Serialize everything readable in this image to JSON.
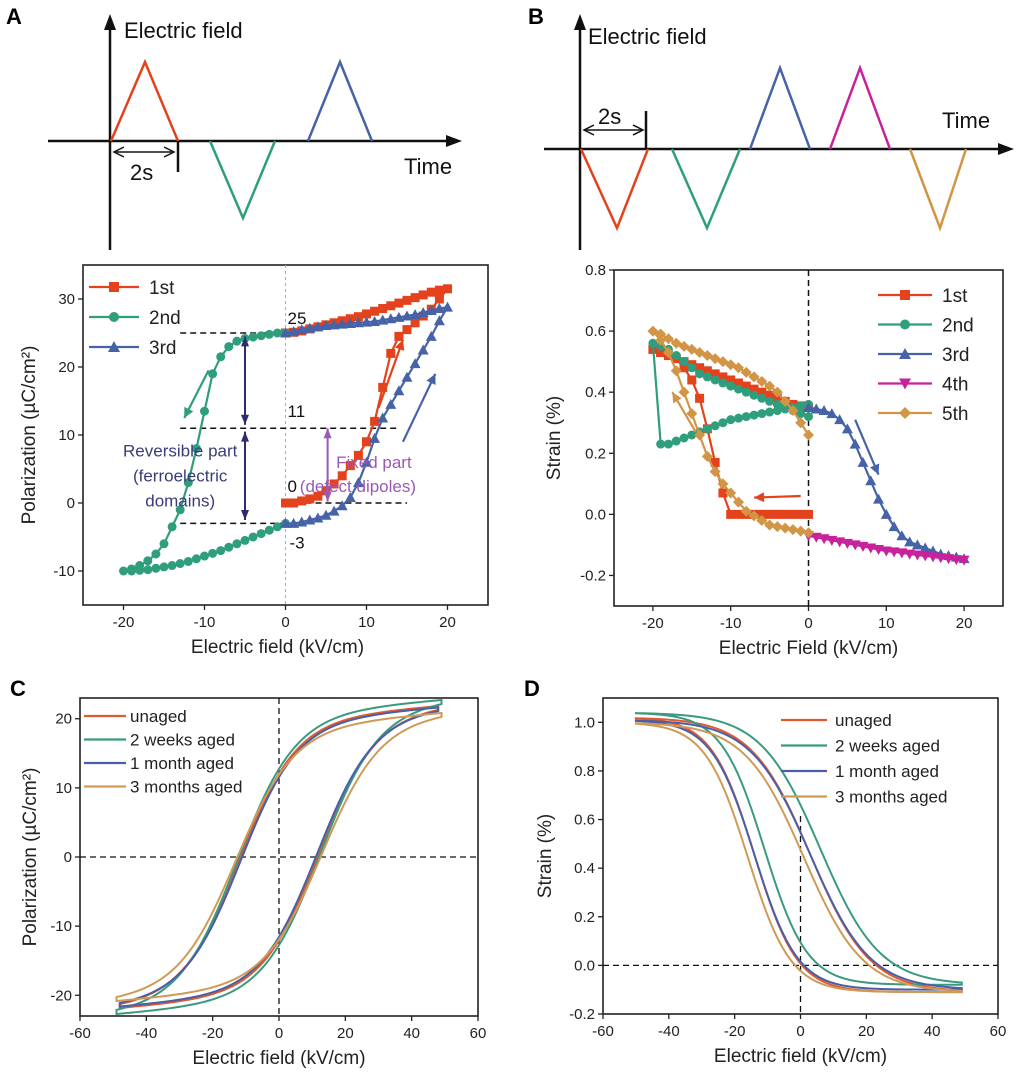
{
  "panels": {
    "A_waveform": {
      "letter": "A",
      "ylabel": "Electric field",
      "xlabel": "Time",
      "interval": "2s"
    },
    "B_waveform": {
      "letter": "B",
      "ylabel": "Electric field",
      "xlabel": "Time",
      "interval": "2s"
    },
    "C": {
      "letter": "C"
    },
    "D": {
      "letter": "D"
    }
  },
  "colors": {
    "red": "#e4421c",
    "green": "#2e9e7c",
    "blue": "#4763a8",
    "magenta": "#c8219b",
    "orange": "#d19545",
    "c_red": "#df5a2e",
    "c_green": "#3a9a80",
    "c_blue": "#4a5fa8",
    "c_orange": "#d09a55",
    "dark_arrow": "#2b2d6e",
    "purple": "#9b59b6",
    "navy_text": "#3b3b7a"
  },
  "chart_data": [
    {
      "id": "A",
      "type": "line",
      "xlabel": "Electric field (kV/cm)",
      "ylabel": "Polarization (µC/cm²)",
      "xlim": [
        -25,
        25
      ],
      "ylim": [
        -15,
        35
      ],
      "xticks": [
        -20,
        -10,
        0,
        10,
        20
      ],
      "yticks": [
        -10,
        0,
        10,
        20,
        30
      ],
      "x_tick_labels": [
        "-20",
        "-10",
        "0",
        "10",
        "20"
      ],
      "y_tick_labels": [
        "-10",
        "0",
        "10",
        "20",
        "30"
      ],
      "legend_position": "top-left",
      "series": [
        {
          "name": "1st",
          "marker": "square",
          "color": "red",
          "x": [
            0,
            1,
            2,
            3,
            4,
            5,
            6,
            7,
            8,
            9,
            10,
            11,
            12,
            13,
            14,
            15,
            16,
            17,
            18,
            19,
            20,
            19,
            18,
            17,
            16,
            15,
            14,
            13,
            12,
            11,
            10,
            9,
            8,
            7,
            6,
            5,
            4,
            3,
            2,
            1,
            0
          ],
          "y": [
            0,
            0,
            0.3,
            0.6,
            1.0,
            1.8,
            2.8,
            4.0,
            5.5,
            7.0,
            9.0,
            12,
            17,
            22,
            24.5,
            25.5,
            26.5,
            27.5,
            28.5,
            30,
            31.5,
            31.3,
            31.0,
            30.6,
            30.2,
            29.8,
            29.4,
            29.0,
            28.6,
            28.2,
            27.8,
            27.4,
            27.1,
            26.8,
            26.5,
            26.2,
            25.9,
            25.6,
            25.3,
            25.1,
            25
          ]
        },
        {
          "name": "2nd",
          "marker": "circle",
          "color": "green",
          "x": [
            0,
            -1,
            -2,
            -3,
            -4,
            -5,
            -6,
            -7,
            -8,
            -9,
            -10,
            -11,
            -12,
            -13,
            -14,
            -15,
            -16,
            -17,
            -18,
            -19,
            -20,
            -19,
            -18,
            -17,
            -16,
            -15,
            -14,
            -13,
            -12,
            -11,
            -10,
            -9,
            -8,
            -7,
            -6,
            -5,
            -4,
            -3,
            -2,
            -1,
            0
          ],
          "y": [
            25,
            25,
            24.8,
            24.6,
            24.4,
            24.2,
            23.8,
            23,
            21.5,
            19,
            13.5,
            8,
            3,
            -1,
            -3.5,
            -6,
            -7.5,
            -8.5,
            -9.2,
            -9.7,
            -10,
            -10,
            -9.9,
            -9.8,
            -9.6,
            -9.4,
            -9.2,
            -8.9,
            -8.6,
            -8.2,
            -7.8,
            -7.4,
            -7,
            -6.5,
            -6,
            -5.5,
            -5,
            -4.5,
            -4,
            -3.5,
            -3
          ]
        },
        {
          "name": "3rd",
          "marker": "triangle",
          "color": "blue",
          "x": [
            0,
            1,
            2,
            3,
            4,
            5,
            6,
            7,
            8,
            9,
            10,
            11,
            12,
            13,
            14,
            15,
            16,
            17,
            18,
            19,
            20,
            19,
            18,
            17,
            16,
            15,
            14,
            13,
            12,
            11,
            10,
            9,
            8,
            7,
            6,
            5,
            4,
            3,
            2,
            1,
            0
          ],
          "y": [
            -3,
            -3,
            -2.8,
            -2.5,
            -2.2,
            -1.8,
            -1.2,
            -0.4,
            0.8,
            3,
            6,
            9.5,
            12.5,
            14.5,
            16.5,
            18.5,
            20.5,
            22.5,
            24.5,
            26.8,
            28.8,
            28.6,
            28.3,
            28.0,
            27.7,
            27.5,
            27.3,
            27.1,
            26.9,
            26.7,
            26.6,
            26.5,
            26.4,
            26.3,
            26.2,
            26.1,
            25.9,
            25.7,
            25.5,
            25.2,
            25
          ]
        }
      ],
      "annotations": {
        "level_25": "25",
        "level_11": "11",
        "level_0": "0",
        "level_m3": "-3",
        "reversible_line1": "Reversible part",
        "reversible_line2": "(ferroelectric",
        "reversible_line3": "domains)",
        "fixed_line1": "Fixed part",
        "fixed_line2": "(defect dipoles)"
      }
    },
    {
      "id": "B",
      "type": "line",
      "xlabel": "Electric Field (kV/cm)",
      "ylabel": "Strain (%)",
      "xlim": [
        -25,
        25
      ],
      "ylim": [
        -0.3,
        0.8
      ],
      "xticks": [
        -20,
        -10,
        0,
        10,
        20
      ],
      "yticks": [
        -0.2,
        0.0,
        0.2,
        0.4,
        0.6,
        0.8
      ],
      "x_tick_labels": [
        "-20",
        "-10",
        "0",
        "10",
        "20"
      ],
      "y_tick_labels": [
        "-0.2",
        "0.0",
        "0.2",
        "0.4",
        "0.6",
        "0.8"
      ],
      "legend_position": "top-right",
      "series": [
        {
          "name": "1st",
          "marker": "square",
          "color": "red",
          "x": [
            0,
            -1,
            -2,
            -3,
            -4,
            -5,
            -6,
            -7,
            -8,
            -9,
            -10,
            -11,
            -12,
            -13,
            -14,
            -15,
            -16,
            -17,
            -18,
            -19,
            -20,
            -19,
            -18,
            -17,
            -16,
            -15,
            -14,
            -13,
            -12,
            -11,
            -10,
            -9,
            -8,
            -7,
            -6,
            -5,
            -4,
            -3,
            -2,
            -1,
            0
          ],
          "y": [
            0,
            0,
            0,
            0,
            0,
            0,
            0,
            0,
            0,
            0,
            0,
            0.07,
            0.17,
            0.28,
            0.38,
            0.44,
            0.48,
            0.51,
            0.52,
            0.53,
            0.54,
            0.53,
            0.52,
            0.51,
            0.5,
            0.49,
            0.48,
            0.47,
            0.46,
            0.45,
            0.44,
            0.43,
            0.42,
            0.41,
            0.4,
            0.39,
            0.38,
            0.37,
            0.36,
            0.355,
            0.35
          ]
        },
        {
          "name": "2nd",
          "marker": "circle",
          "color": "green",
          "x": [
            0,
            -1,
            -2,
            -3,
            -4,
            -5,
            -6,
            -7,
            -8,
            -9,
            -10,
            -11,
            -12,
            -13,
            -14,
            -15,
            -16,
            -17,
            -18,
            -19,
            -20,
            -19,
            -18,
            -17,
            -16,
            -15,
            -14,
            -13,
            -12,
            -11,
            -10,
            -9,
            -8,
            -7,
            -6,
            -5,
            -4,
            -3,
            -2,
            -1,
            0
          ],
          "y": [
            0.36,
            0.355,
            0.35,
            0.345,
            0.34,
            0.335,
            0.33,
            0.325,
            0.32,
            0.315,
            0.31,
            0.3,
            0.29,
            0.28,
            0.27,
            0.26,
            0.25,
            0.24,
            0.23,
            0.23,
            0.56,
            0.55,
            0.54,
            0.52,
            0.5,
            0.48,
            0.46,
            0.45,
            0.44,
            0.43,
            0.42,
            0.41,
            0.4,
            0.39,
            0.38,
            0.37,
            0.36,
            0.35,
            0.34,
            0.33,
            0.32
          ]
        },
        {
          "name": "3rd",
          "marker": "triangle",
          "color": "blue",
          "x": [
            0,
            1,
            2,
            3,
            4,
            5,
            6,
            7,
            8,
            9,
            10,
            11,
            12,
            13,
            14,
            15,
            16,
            17,
            18,
            19,
            20
          ],
          "y": [
            0.35,
            0.345,
            0.34,
            0.33,
            0.31,
            0.28,
            0.23,
            0.17,
            0.11,
            0.05,
            0.0,
            -0.04,
            -0.07,
            -0.09,
            -0.1,
            -0.11,
            -0.12,
            -0.13,
            -0.135,
            -0.14,
            -0.145
          ]
        },
        {
          "name": "4th",
          "marker": "triangle-down",
          "color": "magenta",
          "x": [
            0,
            1,
            2,
            3,
            4,
            5,
            6,
            7,
            8,
            9,
            10,
            11,
            12,
            13,
            14,
            15,
            16,
            17,
            18,
            19,
            20
          ],
          "y": [
            -0.07,
            -0.075,
            -0.08,
            -0.085,
            -0.09,
            -0.095,
            -0.1,
            -0.105,
            -0.11,
            -0.115,
            -0.12,
            -0.123,
            -0.126,
            -0.13,
            -0.133,
            -0.136,
            -0.139,
            -0.142,
            -0.145,
            -0.148,
            -0.15
          ]
        },
        {
          "name": "5th",
          "marker": "diamond",
          "color": "orange",
          "x": [
            0,
            -1,
            -2,
            -3,
            -4,
            -5,
            -6,
            -7,
            -8,
            -9,
            -10,
            -11,
            -12,
            -13,
            -14,
            -15,
            -16,
            -17,
            -18,
            -19,
            -20,
            -19,
            -18,
            -17,
            -16,
            -15,
            -14,
            -13,
            -12,
            -11,
            -10,
            -9,
            -8,
            -7,
            -6,
            -5,
            -4,
            -3,
            -2,
            -1,
            0
          ],
          "y": [
            -0.06,
            -0.055,
            -0.05,
            -0.045,
            -0.04,
            -0.035,
            -0.02,
            -0.005,
            0.01,
            0.04,
            0.07,
            0.1,
            0.14,
            0.19,
            0.26,
            0.33,
            0.4,
            0.47,
            0.53,
            0.57,
            0.6,
            0.59,
            0.575,
            0.56,
            0.55,
            0.54,
            0.53,
            0.52,
            0.51,
            0.5,
            0.49,
            0.48,
            0.465,
            0.45,
            0.435,
            0.42,
            0.4,
            0.37,
            0.34,
            0.3,
            0.26
          ]
        }
      ],
      "annotations": {}
    },
    {
      "id": "C",
      "type": "line",
      "xlabel": "Electric field (kV/cm)",
      "ylabel": "Polarization (µC/cm²)",
      "xlim": [
        -60,
        60
      ],
      "ylim": [
        -23,
        23
      ],
      "xticks": [
        -60,
        -40,
        -20,
        0,
        20,
        40,
        60
      ],
      "yticks": [
        -20,
        -10,
        0,
        10,
        20
      ],
      "x_tick_labels": [
        "-60",
        "-40",
        "-20",
        "0",
        "20",
        "40",
        "60"
      ],
      "y_tick_labels": [
        "-20",
        "-10",
        "0",
        "10",
        "20"
      ],
      "legend_position": "top-left",
      "series": [
        {
          "name": "unaged",
          "color": "c_red",
          "xmax": 48,
          "pmax": 19.0,
          "ec": 12.0,
          "pr": 12.5
        },
        {
          "name": "2 weeks aged",
          "color": "c_green",
          "xmax": 49,
          "pmax": 19.8,
          "ec": 12.5,
          "pr": 12.0
        },
        {
          "name": "1 month aged",
          "color": "c_blue",
          "xmax": 48,
          "pmax": 18.8,
          "ec": 11.5,
          "pr": 12.2
        },
        {
          "name": "3 months aged",
          "color": "c_orange",
          "xmax": 49,
          "pmax": 18.0,
          "ec": 13.0,
          "pr": 12.2
        }
      ]
    },
    {
      "id": "D",
      "type": "line",
      "xlabel": "Electric field (kV/cm)",
      "ylabel": "Strain (%)",
      "xlim": [
        -60,
        60
      ],
      "ylim": [
        -0.2,
        1.1
      ],
      "xticks": [
        -60,
        -40,
        -20,
        0,
        20,
        40,
        60
      ],
      "yticks": [
        -0.2,
        0.0,
        0.2,
        0.4,
        0.6,
        0.8,
        1.0
      ],
      "x_tick_labels": [
        "-60",
        "-40",
        "-20",
        "0",
        "20",
        "40",
        "60"
      ],
      "y_tick_labels": [
        "-0.2",
        "0.0",
        "0.2",
        "0.4",
        "0.6",
        "0.8",
        "1.0"
      ],
      "legend_position": "top-right",
      "series": [
        {
          "name": "unaged",
          "color": "c_red",
          "smax": 1.02,
          "smin": -0.11,
          "shift": 0
        },
        {
          "name": "2 weeks aged",
          "color": "c_green",
          "smax": 1.04,
          "smin": -0.08,
          "shift": -3
        },
        {
          "name": "1 month aged",
          "color": "c_blue",
          "smax": 1.01,
          "smin": -0.1,
          "shift": 0
        },
        {
          "name": "3 months aged",
          "color": "c_orange",
          "smax": 1.0,
          "smin": -0.11,
          "shift": 2
        }
      ]
    }
  ]
}
